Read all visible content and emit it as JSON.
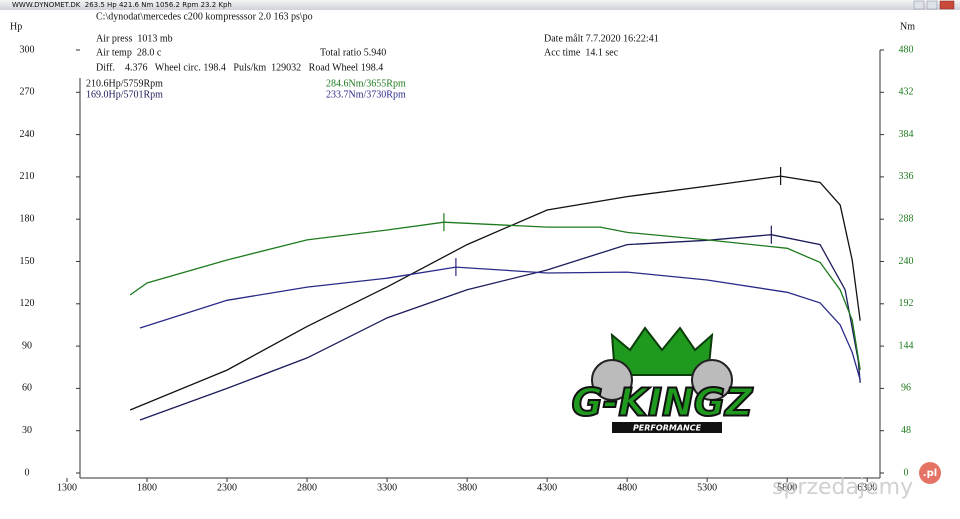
{
  "window": {
    "title": "WWW.DYNOMET.DK  263.5 Hp 421.6 Nm 1056.2 Rpm 23.2 Kph"
  },
  "header": {
    "path": "C:\\dynodat\\mercedes c200 kompresssor 2.0 163 ps\\po",
    "air_press": "Air press  1013 mb",
    "date": "Date målt 7.7.2020 16:22:41",
    "air_temp": "Air temp  28.0 c",
    "ratio": "Total ratio 5.940",
    "acc_time": "Acc time  14.1 sec",
    "diff": "Diff.    4.376   Wheel circ. 198.4   Puls/km  129032   Road Wheel 198.4"
  },
  "chart_data": {
    "type": "line",
    "ylabel": "Hp",
    "y2label": "Nm",
    "xlim": [
      1300,
      6380
    ],
    "xticks": [
      1300,
      1800,
      2300,
      2800,
      3300,
      3800,
      4300,
      4800,
      5300,
      5800,
      6300
    ],
    "ylim": [
      0,
      300
    ],
    "yticks": [
      0,
      30,
      60,
      90,
      120,
      150,
      180,
      210,
      240,
      270,
      300
    ],
    "y2lim": [
      0,
      480
    ],
    "y2ticks": [
      0,
      48,
      96,
      144,
      192,
      240,
      288,
      336,
      384,
      432,
      480
    ],
    "y2color": "#1e7a1e",
    "series": [
      {
        "color": "#111111",
        "x": [
          1694,
          2300,
          2800,
          3300,
          3800,
          4300,
          4800,
          5300,
          5759,
          6006,
          6131,
          6206,
          6256
        ],
        "values": [
          44.7,
          73,
          104,
          132,
          162,
          186.5,
          196,
          203.5,
          210.6,
          206,
          190,
          151,
          108
        ]
      },
      {
        "color": "#1c1c5a",
        "x": [
          1756,
          2300,
          2800,
          3300,
          3800,
          4300,
          4800,
          5300,
          5701,
          6006,
          6162,
          6244,
          6256
        ],
        "values": [
          37.6,
          60,
          81.6,
          110,
          130,
          144,
          162,
          165,
          169.0,
          162,
          130,
          80,
          64
        ]
      },
      {
        "color": "#1e7a1e",
        "axis": "y2",
        "x": [
          1694,
          1800,
          2300,
          2800,
          3300,
          3655,
          4300,
          4631,
          4800,
          5300,
          5800,
          6006,
          6131,
          6206,
          6256
        ],
        "values": [
          202,
          215.6,
          241.7,
          264.5,
          275.7,
          284.6,
          279,
          279,
          273,
          264.5,
          255,
          239,
          207.7,
          173.6,
          117
        ]
      },
      {
        "color": "#2a2a8a",
        "axis": "y2",
        "x": [
          1756,
          2300,
          2800,
          3300,
          3730,
          4300,
          4800,
          5300,
          5800,
          6006,
          6131,
          6206,
          6256
        ],
        "values": [
          164.5,
          196,
          211,
          221,
          233.7,
          227,
          228,
          219,
          205,
          193,
          168,
          137,
          105.6
        ]
      }
    ],
    "annotations": [
      "210.6Hp/5759Rpm",
      "169.0Hp/5701Rpm",
      "284.6Nm/3655Rpm",
      "233.7Nm/3730Rpm"
    ]
  },
  "logo": {
    "text": "G-KINGZ",
    "sub": "PERFORMANCE"
  },
  "watermark": {
    "text": "sprzedajemy",
    "badge": ".pl"
  }
}
